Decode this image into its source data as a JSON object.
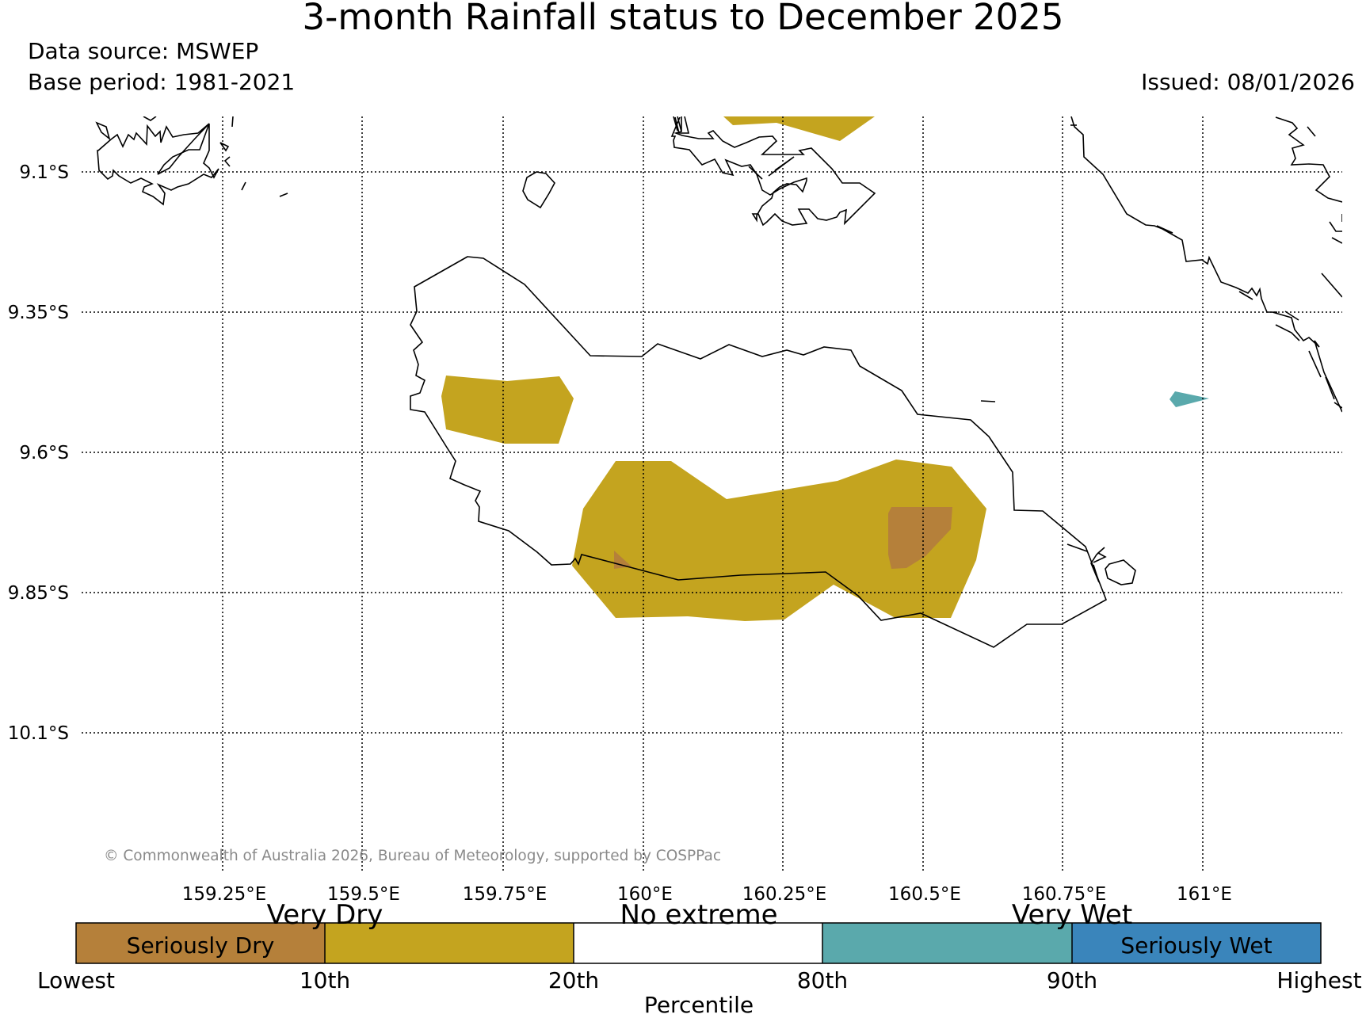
{
  "header": {
    "title": "3-month Rainfall status to December 2025",
    "data_source": "Data source: MSWEP",
    "base_period": "Base period: 1981-2021",
    "issued": "Issued: 08/01/2026"
  },
  "map": {
    "lat_labels": [
      "9.1°S",
      "9.35°S",
      "9.6°S",
      "9.85°S",
      "10.1°S"
    ],
    "lon_labels": [
      "159.25°E",
      "159.5°E",
      "159.75°E",
      "160°E",
      "160.25°E",
      "160.5°E",
      "160.75°E",
      "161°E"
    ],
    "copyright": "© Commonwealth of Australia 2026, Bureau of Meteorology, supported by COSPPac"
  },
  "colors": {
    "seriously_dry": "#b5803a",
    "very_dry": "#c4a41f",
    "no_extreme": "#ffffff",
    "very_wet": "#5aa9ac",
    "seriously_wet": "#3a85bb"
  },
  "legend": {
    "category_labels": [
      "Very Dry",
      "No extreme",
      "Very Wet"
    ],
    "seriously_dry": "Seriously Dry",
    "seriously_wet": "Seriously Wet",
    "ticks": [
      "Lowest",
      "10th",
      "20th",
      "80th",
      "90th",
      "Highest"
    ],
    "axis_title": "Percentile"
  }
}
